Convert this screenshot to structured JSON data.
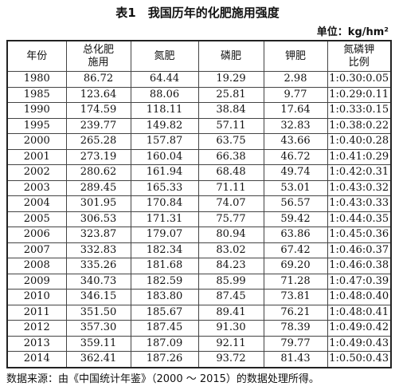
{
  "header": {
    "title": "表1　我国历年的化肥施用强度",
    "unit": "单位：kg/hm²"
  },
  "table": {
    "columns": [
      [
        "年份"
      ],
      [
        "总化肥",
        "施用"
      ],
      [
        "氮肥"
      ],
      [
        "磷肥"
      ],
      [
        "钾肥"
      ],
      [
        "氮磷钾",
        "比例"
      ]
    ],
    "rows": [
      [
        "1980",
        "86.72",
        "64.44",
        "19.29",
        "2.98",
        "1:0.30:0.05"
      ],
      [
        "1985",
        "123.64",
        "88.06",
        "25.81",
        "9.77",
        "1:0.29:0.11"
      ],
      [
        "1990",
        "174.59",
        "118.11",
        "38.84",
        "17.64",
        "1:0.33:0.15"
      ],
      [
        "1995",
        "239.77",
        "149.82",
        "57.11",
        "32.83",
        "1:0.38:0.22"
      ],
      [
        "2000",
        "265.28",
        "157.87",
        "63.75",
        "43.66",
        "1:0.40:0.28"
      ],
      [
        "2001",
        "273.19",
        "160.04",
        "66.38",
        "46.72",
        "1:0.41:0.29"
      ],
      [
        "2002",
        "280.62",
        "161.94",
        "68.48",
        "49.74",
        "1:0.42:0.31"
      ],
      [
        "2003",
        "289.45",
        "165.33",
        "71.11",
        "53.01",
        "1:0.43:0.32"
      ],
      [
        "2004",
        "301.95",
        "170.84",
        "74.07",
        "56.57",
        "1:0.43:0.33"
      ],
      [
        "2005",
        "306.53",
        "171.31",
        "75.77",
        "59.42",
        "1:0.44:0.35"
      ],
      [
        "2006",
        "323.87",
        "179.07",
        "80.94",
        "63.86",
        "1:0.45:0.36"
      ],
      [
        "2007",
        "332.83",
        "182.34",
        "83.02",
        "67.42",
        "1:0.46:0.37"
      ],
      [
        "2008",
        "335.26",
        "181.68",
        "84.23",
        "69.20",
        "1:0.46:0.38"
      ],
      [
        "2009",
        "340.73",
        "182.59",
        "85.99",
        "71.28",
        "1:0.47:0.39"
      ],
      [
        "2010",
        "346.15",
        "183.80",
        "87.45",
        "73.81",
        "1:0.48:0.40"
      ],
      [
        "2011",
        "351.50",
        "185.67",
        "89.41",
        "76.21",
        "1:0.48:0.41"
      ],
      [
        "2012",
        "357.30",
        "187.45",
        "91.30",
        "78.39",
        "1:0.49:0.42"
      ],
      [
        "2013",
        "359.11",
        "187.09",
        "92.11",
        "79.77",
        "1:0.49:0.43"
      ],
      [
        "2014",
        "362.41",
        "187.26",
        "93.72",
        "81.43",
        "1:0.50:0.43"
      ]
    ]
  },
  "footer": {
    "source": "数据来源：由《中国统计年鉴》（2000 ～ 2015）的数据处理所得。"
  }
}
